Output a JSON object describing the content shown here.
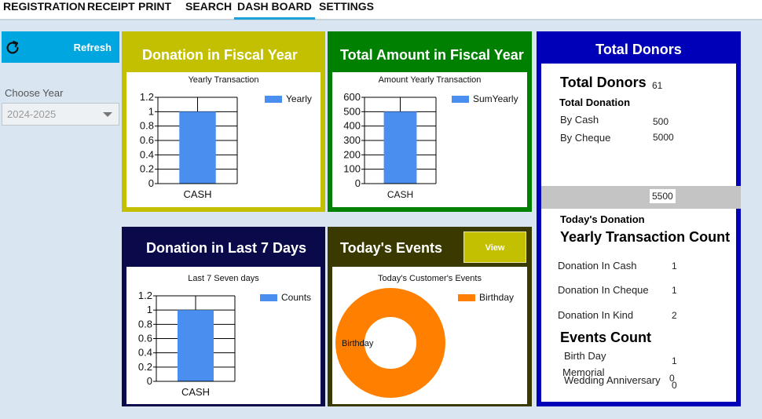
{
  "menu": {
    "items": [
      {
        "label": "REGISTRATION"
      },
      {
        "label": "RECEIPT"
      },
      {
        "label": "PRINT"
      },
      {
        "label": "SEARCH"
      },
      {
        "label": "DASH BOARD",
        "active": true
      },
      {
        "label": "SETTINGS"
      }
    ]
  },
  "sidebar": {
    "refresh_label": "Refresh",
    "refresh_icon": "refresh-icon",
    "choose_label": "Choose Year",
    "year_value": "2024-2025"
  },
  "panels": {
    "fiscal_donation": {
      "title": "Donation in Fiscal Year",
      "color": "#c2c000",
      "chart_title": "Yearly Transaction",
      "legend": "Yearly"
    },
    "fiscal_amount": {
      "title": "Total Amount in Fiscal Year",
      "color": "#008000",
      "chart_title": "Amount Yearly Transaction",
      "legend": "SumYearly"
    },
    "last7": {
      "title": "Donation in Last 7 Days",
      "color": "#0a0a4a",
      "chart_title": "Last 7 Seven days",
      "legend": "Counts"
    },
    "events": {
      "title": "Today's Events",
      "color": "#3a3a00",
      "view_label": "View",
      "chart_title": "Today's Customer's Events",
      "legend": "Birthday",
      "slice_label": "Birthday"
    }
  },
  "chart_data": [
    {
      "type": "bar",
      "title": "Yearly Transaction",
      "categories": [
        "CASH"
      ],
      "series": [
        {
          "name": "Yearly",
          "values": [
            1
          ]
        }
      ],
      "ylim": [
        0,
        1.2
      ],
      "yticks": [
        "0",
        "0.2",
        "0.4",
        "0.6",
        "0.8",
        "1",
        "1.2"
      ],
      "grid": true,
      "legend_position": "top-right",
      "color": "#4a8ef0"
    },
    {
      "type": "bar",
      "title": "Amount Yearly Transaction",
      "categories": [
        "CASH"
      ],
      "series": [
        {
          "name": "SumYearly",
          "values": [
            500
          ]
        }
      ],
      "ylim": [
        0,
        600
      ],
      "yticks": [
        "0",
        "100",
        "200",
        "300",
        "400",
        "500",
        "600"
      ],
      "grid": true,
      "legend_position": "top-right",
      "color": "#4a8ef0"
    },
    {
      "type": "bar",
      "title": "Last 7 Seven days",
      "categories": [
        "CASH"
      ],
      "series": [
        {
          "name": "Counts",
          "values": [
            1
          ]
        }
      ],
      "ylim": [
        0,
        1.2
      ],
      "yticks": [
        "0",
        "0.2",
        "0.4",
        "0.6",
        "0.8",
        "1",
        "1.2"
      ],
      "grid": true,
      "legend_position": "top-right",
      "color": "#4a8ef0"
    },
    {
      "type": "pie",
      "title": "Today's Customer's Events",
      "categories": [
        "Birthday"
      ],
      "values": [
        1
      ],
      "donut": true,
      "legend_position": "top-right",
      "color": "#ff8000"
    }
  ],
  "donors": {
    "header": "Total Donors",
    "total_label": "Total Donors",
    "total_value": "61",
    "total_donation_label": "Total Donation",
    "by_cash_label": "By Cash",
    "by_cash_value": "500",
    "by_cheque_label": "By Cheque",
    "by_cheque_value": "5000",
    "sum_value": "5500",
    "today_label": "Today's Donation",
    "yearly_count_label": "Yearly Transaction Count",
    "cash_count_label": "Donation In Cash",
    "cash_count_value": "1",
    "cheque_count_label": "Donation In Cheque",
    "cheque_count_value": "1",
    "kind_count_label": "Donation In Kind",
    "kind_count_value": "2",
    "events_label": "Events Count",
    "birthday_label": "Birth Day",
    "birthday_value": "1",
    "wedding_label": "Wedding Anniversary",
    "wedding_value": "0",
    "memorial_label": "Memorial",
    "memorial_value": "0"
  }
}
